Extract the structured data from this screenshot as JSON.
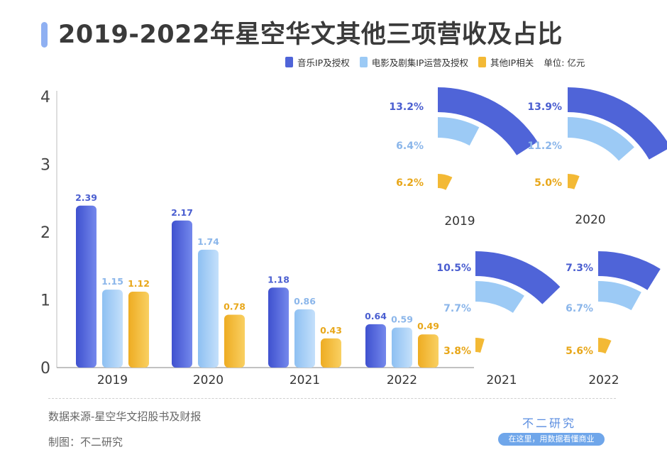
{
  "title": "2019-2022年星空华文其他三项营收及占比",
  "unit_label": "单位: 亿元",
  "source": "数据来源-星空华文招股书及财报",
  "credit": "制图：不二研究",
  "brand": {
    "name": "不二研究",
    "slogan": "在这里，用数据看懂商业"
  },
  "colors": {
    "music": "#4f64d8",
    "film": "#9ccaf5",
    "other": "#f3b935"
  },
  "chart_data": [
    {
      "type": "bar",
      "title": "",
      "unit": "亿元",
      "categories": [
        "2019",
        "2020",
        "2021",
        "2022"
      ],
      "series": [
        {
          "name": "音乐IP及授权",
          "values": [
            2.39,
            2.17,
            1.18,
            0.64
          ]
        },
        {
          "name": "电影及剧集IP运营及授权",
          "values": [
            1.15,
            1.74,
            0.86,
            0.59
          ]
        },
        {
          "name": "其他IP相关",
          "values": [
            1.12,
            0.78,
            0.43,
            0.49
          ]
        }
      ],
      "yticks": [
        "0",
        "1",
        "2",
        "3",
        "4"
      ],
      "ylim": [
        0,
        4
      ],
      "grid": false,
      "legend": "top-right"
    },
    {
      "type": "pie",
      "title": "",
      "panels": [
        {
          "year": "2019",
          "series": [
            "音乐IP及授权",
            "电影及剧集IP运营及授权",
            "其他IP相关"
          ],
          "values": [
            13.2,
            6.4,
            6.2
          ],
          "labels": [
            "13.2%",
            "6.4%",
            "6.2%"
          ]
        },
        {
          "year": "2020",
          "series": [
            "音乐IP及授权",
            "电影及剧集IP运营及授权",
            "其他IP相关"
          ],
          "values": [
            13.9,
            11.2,
            5.0
          ],
          "labels": [
            "13.9%",
            "11.2%",
            "5.0%"
          ]
        },
        {
          "year": "2021",
          "series": [
            "音乐IP及授权",
            "电影及剧集IP运营及授权",
            "其他IP相关"
          ],
          "values": [
            10.5,
            7.7,
            3.8
          ],
          "labels": [
            "10.5%",
            "7.7%",
            "3.8%"
          ]
        },
        {
          "year": "2022",
          "series": [
            "音乐IP及授权",
            "电影及剧集IP运营及授权",
            "其他IP相关"
          ],
          "values": [
            7.3,
            6.7,
            5.6
          ],
          "labels": [
            "7.3%",
            "6.7%",
            "5.6%"
          ]
        }
      ]
    }
  ]
}
